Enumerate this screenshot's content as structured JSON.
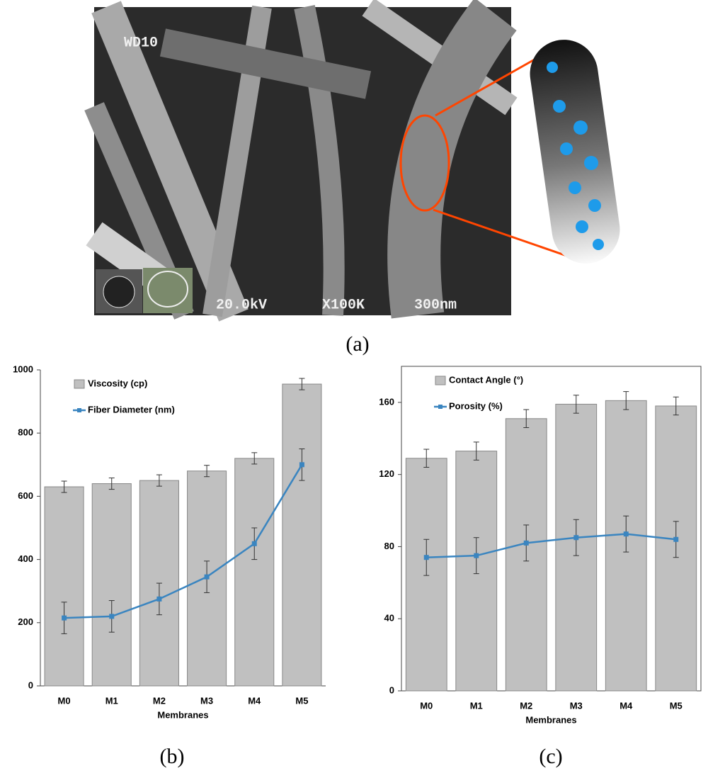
{
  "image": {
    "labels": [
      "WD10",
      "20.0kV",
      "X100K",
      "300nm"
    ],
    "panel": "(a)"
  },
  "chart_data": [
    {
      "type": "bar",
      "panel": "(b)",
      "x_label": "Membranes",
      "categories": [
        "M0",
        "M1",
        "M2",
        "M3",
        "M4",
        "M5"
      ],
      "ylim": [
        0,
        1000
      ],
      "yticks": [
        0,
        200,
        400,
        600,
        800,
        1000
      ],
      "grid": false,
      "box": false,
      "legend": "upper left",
      "series": [
        {
          "name": "Viscosity (cp)",
          "type": "bar",
          "color": "#c0c0c0",
          "values": [
            630,
            640,
            650,
            680,
            720,
            955
          ],
          "errors": [
            18,
            18,
            18,
            18,
            18,
            18
          ]
        },
        {
          "name": "Fiber Diameter (nm)",
          "type": "line",
          "color": "#3a85c0",
          "values": [
            215,
            220,
            275,
            345,
            450,
            700
          ],
          "errors": [
            50,
            50,
            50,
            50,
            50,
            50
          ]
        }
      ]
    },
    {
      "type": "bar",
      "panel": "(c)",
      "x_label": "Membranes",
      "categories": [
        "M0",
        "M1",
        "M2",
        "M3",
        "M4",
        "M5"
      ],
      "ylim": [
        0,
        180
      ],
      "yticks": [
        0,
        40,
        80,
        120,
        160
      ],
      "grid": false,
      "box": true,
      "legend": "upper left",
      "series": [
        {
          "name": "Contact Angle (°)",
          "type": "bar",
          "color": "#c0c0c0",
          "values": [
            129,
            133,
            151,
            159,
            161,
            158
          ],
          "errors": [
            5,
            5,
            5,
            5,
            5,
            5
          ]
        },
        {
          "name": "Porosity (%)",
          "type": "line",
          "color": "#3a85c0",
          "values": [
            74,
            75,
            82,
            85,
            87,
            84
          ],
          "errors": [
            10,
            10,
            10,
            10,
            10,
            10
          ]
        }
      ]
    }
  ]
}
